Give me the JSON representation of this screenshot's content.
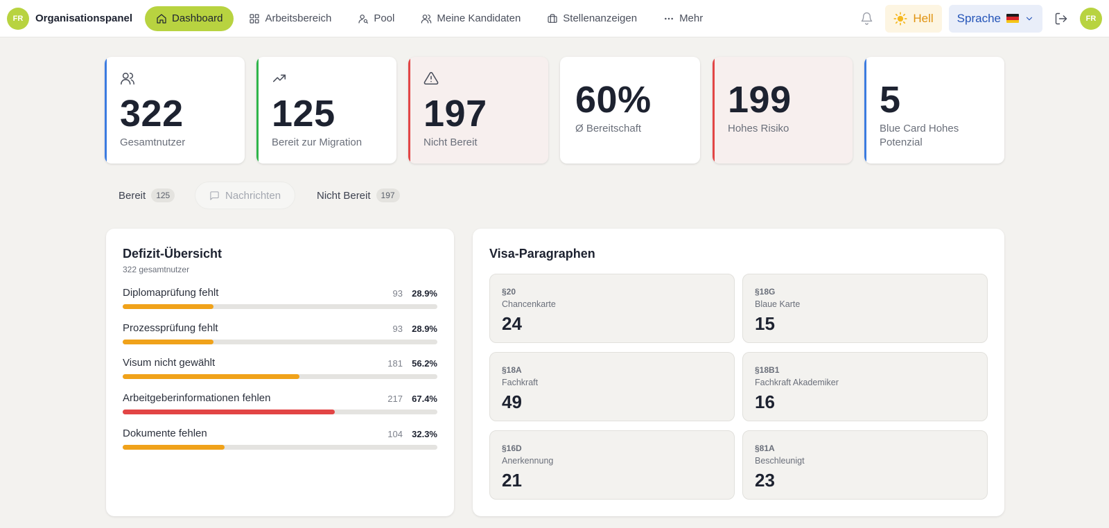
{
  "nav": {
    "avatar_initials": "FR",
    "brand": "Organisationspanel",
    "items": [
      {
        "label": "Dashboard",
        "icon": "home-icon",
        "active": true
      },
      {
        "label": "Arbeitsbereich",
        "icon": "grid-icon"
      },
      {
        "label": "Pool",
        "icon": "user-search-icon"
      },
      {
        "label": "Meine Kandidaten",
        "icon": "users-icon"
      },
      {
        "label": "Stellenanzeigen",
        "icon": "briefcase-icon"
      },
      {
        "label": "Mehr",
        "icon": "more-icon"
      }
    ],
    "theme_label": "Hell",
    "language_label": "Sprache",
    "user_initials": "FR"
  },
  "stats": [
    {
      "value": "322",
      "label": "Gesamtnutzer",
      "icon": "users-icon",
      "accent": "#3b7be0"
    },
    {
      "value": "125",
      "label": "Bereit zur Migration",
      "icon": "trending-up-icon",
      "accent": "#2fb54a"
    },
    {
      "value": "197",
      "label": "Nicht Bereit",
      "icon": "warning-icon",
      "accent": "#e24545"
    },
    {
      "value": "60%",
      "label": "Ø Bereitschaft"
    },
    {
      "value": "199",
      "label": "Hohes Risiko",
      "accent": "#e24545"
    },
    {
      "value": "5",
      "label": "Blue Card Hohes Potenzial",
      "accent": "#3b7be0"
    }
  ],
  "tabs": {
    "ready_label": "Bereit",
    "ready_count": "125",
    "messages_label": "Nachrichten",
    "notready_label": "Nicht Bereit",
    "notready_count": "197"
  },
  "deficit": {
    "title": "Defizit-Übersicht",
    "subtitle": "322 gesamtnutzer",
    "rows": [
      {
        "name": "Diplomaprüfung fehlt",
        "count": "93",
        "percent": "28.9%",
        "fraction": 0.289,
        "color": "#f0a21a"
      },
      {
        "name": "Prozessprüfung fehlt",
        "count": "93",
        "percent": "28.9%",
        "fraction": 0.289,
        "color": "#f0a21a"
      },
      {
        "name": "Visum nicht gewählt",
        "count": "181",
        "percent": "56.2%",
        "fraction": 0.562,
        "color": "#f0a21a"
      },
      {
        "name": "Arbeitgeberinformationen fehlen",
        "count": "217",
        "percent": "67.4%",
        "fraction": 0.674,
        "color": "#e24545"
      },
      {
        "name": "Dokumente fehlen",
        "count": "104",
        "percent": "32.3%",
        "fraction": 0.323,
        "color": "#f0a21a"
      }
    ]
  },
  "visa": {
    "title": "Visa-Paragraphen",
    "items": [
      {
        "code": "§20",
        "name": "Chancenkarte",
        "value": "24"
      },
      {
        "code": "§18G",
        "name": "Blaue Karte",
        "value": "15"
      },
      {
        "code": "§18A",
        "name": "Fachkraft",
        "value": "49"
      },
      {
        "code": "§18B1",
        "name": "Fachkraft Akademiker",
        "value": "16"
      },
      {
        "code": "§16D",
        "name": "Anerkennung",
        "value": "21"
      },
      {
        "code": "§81A",
        "name": "Beschleunigt",
        "value": "23"
      }
    ]
  }
}
